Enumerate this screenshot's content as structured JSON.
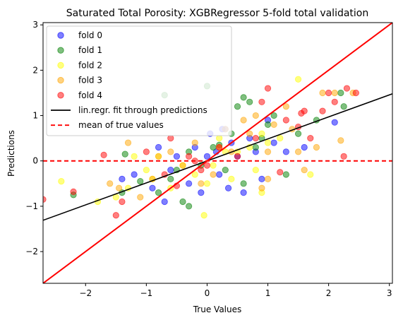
{
  "chart_data": {
    "type": "scatter",
    "title": "Saturated Total Porosity: XGBRegressor 5-fold total validation",
    "xlabel": "True Values",
    "ylabel": "Predictions",
    "xlim": [
      -2.7,
      3.05
    ],
    "ylim": [
      -2.7,
      3.05
    ],
    "xticks": [
      -2,
      -1,
      0,
      1,
      2,
      3
    ],
    "yticks": [
      -2,
      -1,
      0,
      1,
      2,
      3
    ],
    "grid": false,
    "legend_position": "top-left",
    "series": [
      {
        "name": "fold 0",
        "color": "#0000ff",
        "points": [
          [
            -1.4,
            -0.4
          ],
          [
            -1.2,
            -0.3
          ],
          [
            -0.9,
            -0.6
          ],
          [
            -0.7,
            -0.9
          ],
          [
            -0.6,
            -0.2
          ],
          [
            -0.5,
            0.1
          ],
          [
            -0.3,
            -0.5
          ],
          [
            -0.1,
            -0.7
          ],
          [
            0.0,
            0.1
          ],
          [
            0.05,
            0.6
          ],
          [
            0.15,
            0.2
          ],
          [
            0.2,
            -0.3
          ],
          [
            0.3,
            0.7
          ],
          [
            0.35,
            -0.6
          ],
          [
            0.4,
            0.4
          ],
          [
            0.5,
            0.1
          ],
          [
            0.6,
            -0.7
          ],
          [
            0.7,
            0.5
          ],
          [
            0.8,
            0.2
          ],
          [
            1.0,
            0.9
          ],
          [
            1.1,
            0.4
          ],
          [
            1.3,
            0.2
          ],
          [
            1.6,
            0.3
          ],
          [
            2.1,
            0.85
          ],
          [
            -0.2,
            0.3
          ],
          [
            -0.8,
            0.3
          ],
          [
            0.9,
            -0.4
          ],
          [
            0.25,
            0.7
          ]
        ]
      },
      {
        "name": "fold 1",
        "color": "#008000",
        "points": [
          [
            -2.2,
            -0.75
          ],
          [
            -1.4,
            -0.7
          ],
          [
            -1.35,
            0.15
          ],
          [
            -1.1,
            -0.45
          ],
          [
            -0.8,
            -0.7
          ],
          [
            -0.7,
            1.45
          ],
          [
            -0.6,
            -0.4
          ],
          [
            -0.5,
            -0.2
          ],
          [
            -0.4,
            -0.9
          ],
          [
            -0.3,
            0.2
          ],
          [
            -0.1,
            -0.1
          ],
          [
            0.0,
            1.65
          ],
          [
            0.1,
            0.3
          ],
          [
            0.2,
            0.35
          ],
          [
            0.3,
            -0.2
          ],
          [
            0.4,
            0.6
          ],
          [
            0.5,
            1.2
          ],
          [
            0.6,
            1.4
          ],
          [
            0.7,
            1.3
          ],
          [
            0.8,
            0.3
          ],
          [
            0.9,
            0.5
          ],
          [
            1.0,
            0.8
          ],
          [
            1.1,
            1.0
          ],
          [
            1.3,
            -0.3
          ],
          [
            1.5,
            0.6
          ],
          [
            1.8,
            0.9
          ],
          [
            2.2,
            1.5
          ],
          [
            2.25,
            1.2
          ],
          [
            -0.3,
            -1.0
          ],
          [
            0.6,
            -0.5
          ]
        ]
      },
      {
        "name": "fold 2",
        "color": "#ffff00",
        "points": [
          [
            -2.4,
            -0.45
          ],
          [
            -1.8,
            -0.9
          ],
          [
            -1.5,
            -0.8
          ],
          [
            -1.3,
            -0.6
          ],
          [
            -1.2,
            0.1
          ],
          [
            -1.0,
            -0.2
          ],
          [
            -0.9,
            -0.4
          ],
          [
            -0.8,
            0.1
          ],
          [
            -0.6,
            -0.6
          ],
          [
            -0.4,
            -0.1
          ],
          [
            -0.2,
            -0.3
          ],
          [
            0.0,
            -0.5
          ],
          [
            0.1,
            -0.1
          ],
          [
            0.2,
            0.5
          ],
          [
            0.3,
            0.2
          ],
          [
            0.4,
            -0.4
          ],
          [
            0.5,
            0.2
          ],
          [
            0.7,
            0.3
          ],
          [
            0.8,
            -0.2
          ],
          [
            0.9,
            -0.7
          ],
          [
            1.0,
            0.4
          ],
          [
            1.2,
            0.5
          ],
          [
            1.5,
            1.8
          ],
          [
            1.7,
            -0.3
          ],
          [
            -0.05,
            -1.2
          ],
          [
            0.9,
            0.6
          ]
        ]
      },
      {
        "name": "fold 3",
        "color": "#ffa500",
        "points": [
          [
            -1.6,
            -0.5
          ],
          [
            -1.45,
            -0.6
          ],
          [
            -1.3,
            0.4
          ],
          [
            -1.1,
            -0.8
          ],
          [
            -0.9,
            -0.4
          ],
          [
            -0.8,
            0.1
          ],
          [
            -0.6,
            0.2
          ],
          [
            -0.4,
            -0.1
          ],
          [
            -0.2,
            0.4
          ],
          [
            -0.1,
            -0.5
          ],
          [
            0.1,
            -0.3
          ],
          [
            0.2,
            0.3
          ],
          [
            0.3,
            0.7
          ],
          [
            0.4,
            0.2
          ],
          [
            0.6,
            0.9
          ],
          [
            0.7,
            0.6
          ],
          [
            0.8,
            1.0
          ],
          [
            0.9,
            -0.6
          ],
          [
            1.0,
            0.2
          ],
          [
            1.1,
            0.8
          ],
          [
            1.3,
            1.2
          ],
          [
            1.4,
            0.7
          ],
          [
            1.5,
            0.2
          ],
          [
            1.6,
            -0.2
          ],
          [
            1.8,
            0.3
          ],
          [
            1.9,
            1.5
          ],
          [
            2.1,
            1.5
          ],
          [
            2.2,
            0.45
          ],
          [
            2.4,
            1.5
          ],
          [
            1.0,
            -0.4
          ]
        ]
      },
      {
        "name": "fold 4",
        "color": "#ff0000",
        "points": [
          [
            -2.7,
            -0.85
          ],
          [
            -2.2,
            -0.68
          ],
          [
            -1.7,
            0.13
          ],
          [
            -1.4,
            -0.9
          ],
          [
            -1.0,
            0.2
          ],
          [
            -0.7,
            -0.3
          ],
          [
            -0.6,
            0.5
          ],
          [
            -0.5,
            -0.55
          ],
          [
            -0.3,
            0.1
          ],
          [
            -0.2,
            0.0
          ],
          [
            -0.1,
            -0.2
          ],
          [
            0.0,
            -0.1
          ],
          [
            0.2,
            0.3
          ],
          [
            0.5,
            0.1
          ],
          [
            0.8,
            0.5
          ],
          [
            1.0,
            1.6
          ],
          [
            1.2,
            -0.25
          ],
          [
            1.3,
            0.9
          ],
          [
            1.5,
            0.75
          ],
          [
            1.6,
            1.1
          ],
          [
            1.7,
            0.5
          ],
          [
            1.9,
            1.1
          ],
          [
            2.0,
            1.5
          ],
          [
            2.1,
            1.3
          ],
          [
            2.25,
            0.1
          ],
          [
            2.3,
            1.6
          ],
          [
            2.45,
            1.5
          ],
          [
            -1.5,
            -1.2
          ],
          [
            0.9,
            1.3
          ],
          [
            1.55,
            1.05
          ]
        ]
      }
    ],
    "lines": [
      {
        "name": "lin.regr. fit through predictions",
        "color": "#000000",
        "style": "solid",
        "x": [
          -2.7,
          3.05
        ],
        "y": [
          -1.31,
          1.48
        ]
      },
      {
        "name": "mean of true values",
        "color": "#ff0000",
        "style": "dashed",
        "y_const": 0
      },
      {
        "name": "",
        "color": "#ff0000",
        "style": "solid",
        "x": [
          -2.7,
          3.05
        ],
        "y": [
          -2.7,
          3.05
        ]
      }
    ]
  }
}
